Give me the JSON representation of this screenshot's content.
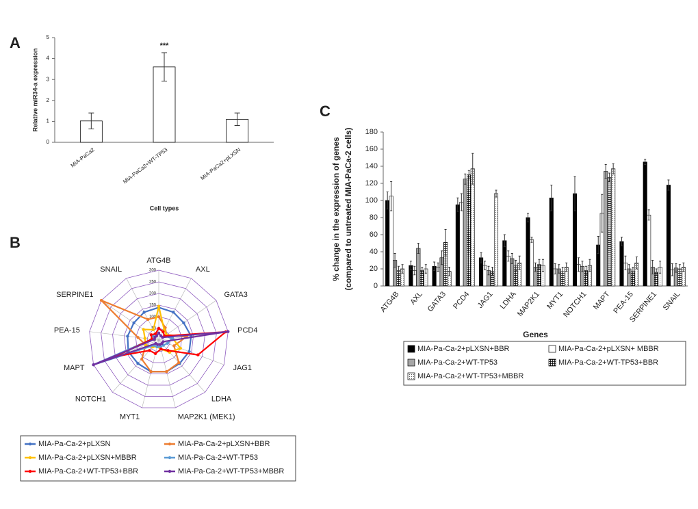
{
  "chart_data": [
    {
      "type": "bar",
      "panel_label": "A",
      "ylabel": "Relative miR34-a expression",
      "xlabel": "Cell types",
      "categories": [
        "MIA-PaCa2",
        "MIA-PaCa2+WT-TP53",
        "MIA-PaCa2+pLXSN"
      ],
      "values": [
        1.02,
        3.6,
        1.1
      ],
      "errors": [
        0.38,
        0.68,
        0.3
      ],
      "color": "#ffffff",
      "ylim": [
        0,
        5
      ],
      "yticks": [
        0,
        1,
        2,
        3,
        4,
        5
      ],
      "annotation": "***",
      "grid": false
    },
    {
      "type": "radar",
      "panel_label": "B",
      "categories": [
        "ATG4B",
        "AXL",
        "GATA3",
        "PCD4",
        "JAG1",
        "LDHA",
        "MAP2K1 (MEK1)",
        "MYT1",
        "NOTCH1",
        "MAPT",
        "PEA-15",
        "SERPINE1",
        "SNAIL"
      ],
      "rlim": [
        0,
        300
      ],
      "rticks": [
        0,
        50,
        100,
        150,
        200,
        250,
        300
      ],
      "legend": "bottom",
      "series": [
        {
          "name": "MIA-Pa-Ca-2+pLXSN",
          "color": "#4472c4",
          "values": [
            140,
            135,
            130,
            140,
            140,
            135,
            140,
            140,
            135,
            140,
            135,
            130,
            135
          ]
        },
        {
          "name": "MIA-Pa-Ca-2+pLXSN+BBR",
          "color": "#ed7d31",
          "values": [
            100,
            60,
            40,
            120,
            70,
            130,
            140,
            140,
            110,
            60,
            90,
            300,
            100
          ]
        },
        {
          "name": "MIA-Pa-Ca-2+pLXSN+MBBR",
          "color": "#ffc000",
          "values": [
            145,
            50,
            40,
            60,
            100,
            70,
            40,
            30,
            40,
            60,
            60,
            80,
            50
          ]
        },
        {
          "name": "MIA-Pa-Ca-2+WT-TP53",
          "color": "#5b9bd5",
          "values": [
            50,
            40,
            30,
            60,
            40,
            30,
            30,
            30,
            30,
            300,
            30,
            30,
            30
          ]
        },
        {
          "name": "MIA-Pa-Ca-2+WT-TP53+BBR",
          "color": "#ff0000",
          "values": [
            50,
            40,
            30,
            290,
            180,
            60,
            40,
            60,
            60,
            200,
            30,
            40,
            30
          ]
        },
        {
          "name": "MIA-Pa-Ca-2+WT-TP53+MBBR",
          "color": "#7030a0",
          "values": [
            30,
            20,
            20,
            300,
            20,
            20,
            20,
            20,
            20,
            300,
            20,
            20,
            20
          ]
        }
      ]
    },
    {
      "type": "bar",
      "panel_label": "C",
      "ylabel": [
        "% change in the expression of genes",
        "(compared to untreated MIA-PaCa-2 cells)"
      ],
      "xlabel": "Genes",
      "categories": [
        "ATG4B",
        "AXL",
        "GATA3",
        "PCD4",
        "JAG1",
        "LDHA",
        "MAP2K1",
        "MYT1",
        "NOTCH1",
        "MAPT",
        "PEA-15",
        "SERPINE1",
        "SNAIL"
      ],
      "ylim": [
        0,
        180
      ],
      "yticks": [
        0,
        20,
        40,
        60,
        80,
        100,
        120,
        140,
        160,
        180
      ],
      "grid": false,
      "legend": "bottom",
      "series": [
        {
          "name": "MIA-Pa-Ca-2+pLXSN+BBR",
          "color": "#000000",
          "pattern": "solid",
          "values": [
            100,
            24,
            23,
            95,
            33,
            53,
            80,
            103,
            108,
            48,
            52,
            145,
            118
          ],
          "errors": [
            10,
            5,
            5,
            8,
            6,
            7,
            5,
            15,
            20,
            10,
            5,
            3,
            6
          ]
        },
        {
          "name": "MIA-Pa-Ca-2+pLXSN+ MBBR",
          "color": "#ffffff",
          "pattern": "solid",
          "values": [
            105,
            18,
            22,
            98,
            24,
            35,
            54,
            20,
            25,
            85,
            27,
            83,
            19
          ],
          "errors": [
            17,
            5,
            5,
            10,
            5,
            6,
            3,
            6,
            8,
            22,
            8,
            6,
            7
          ]
        },
        {
          "name": "MIA-Pa-Ca-2+WT-TP53",
          "color": "#a6a6a6",
          "pattern": "solid",
          "values": [
            30,
            44,
            33,
            125,
            18,
            32,
            22,
            20,
            23,
            134,
            20,
            22,
            21
          ],
          "errors": [
            8,
            6,
            8,
            6,
            5,
            6,
            5,
            5,
            6,
            8,
            5,
            8,
            5
          ]
        },
        {
          "name": "MIA-Pa-Ca-2+WT-TP53+BBR",
          "color": "#ffffff",
          "pattern": "grid",
          "values": [
            18,
            18,
            51,
            130,
            17,
            24,
            25,
            17,
            18,
            127,
            17,
            16,
            20
          ],
          "errors": [
            5,
            4,
            15,
            5,
            5,
            6,
            6,
            5,
            5,
            5,
            5,
            4,
            5
          ]
        },
        {
          "name": "MIA-Pa-Ca-2+WT-TP53+MBBR",
          "color": "#ffffff",
          "pattern": "dots",
          "values": [
            20,
            20,
            17,
            137,
            108,
            27,
            24,
            22,
            24,
            137,
            27,
            22,
            22
          ],
          "errors": [
            5,
            5,
            5,
            18,
            4,
            8,
            7,
            5,
            7,
            6,
            7,
            7,
            5
          ]
        }
      ]
    }
  ]
}
